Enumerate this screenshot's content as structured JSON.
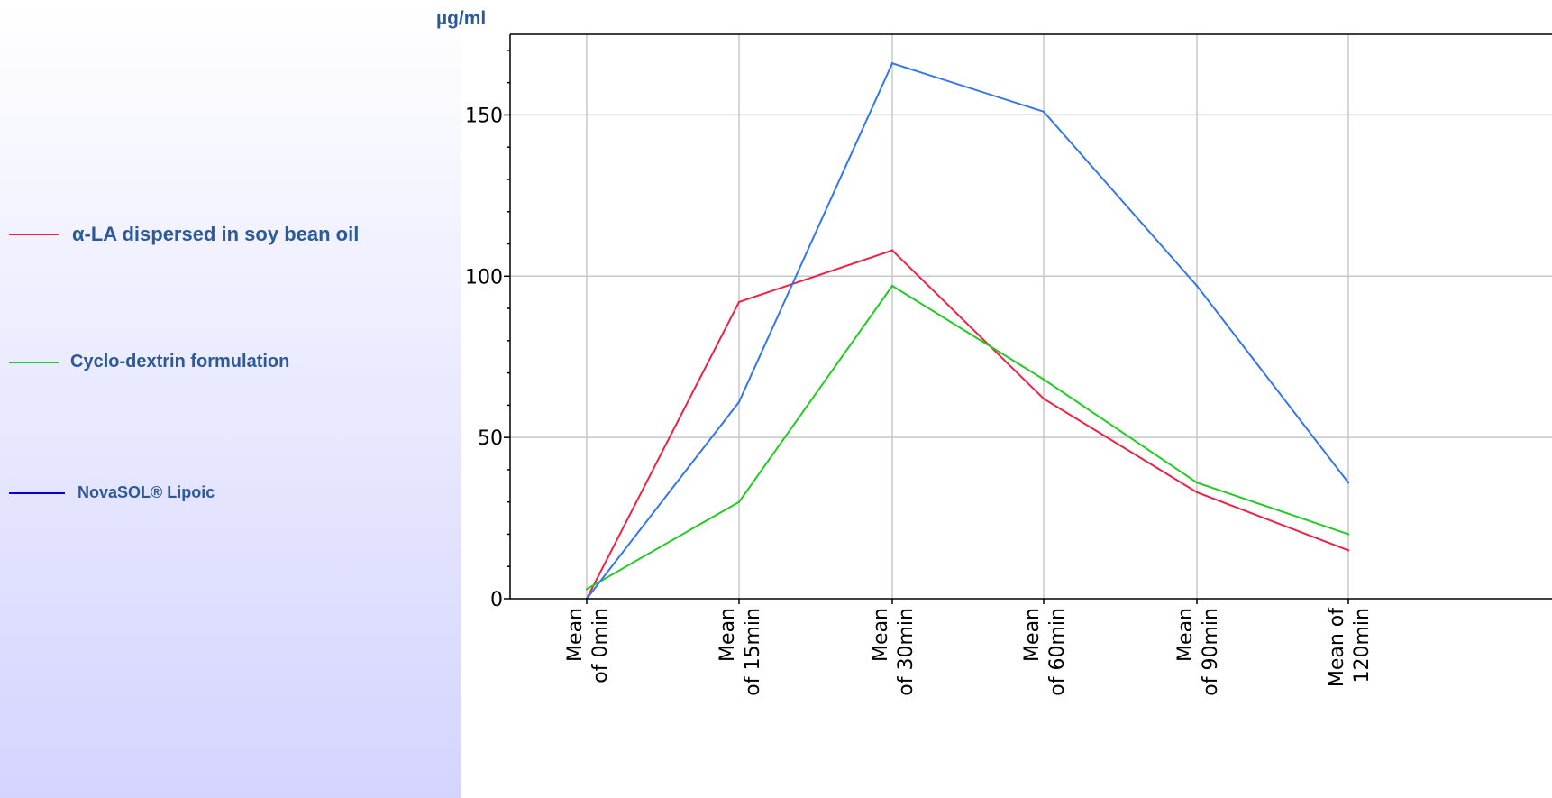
{
  "chart_data": {
    "type": "line",
    "ylabel": "µg/ml",
    "ylim": [
      0,
      175
    ],
    "yticks": [
      0,
      50,
      100,
      150
    ],
    "grid": true,
    "legend_position": "left",
    "categories": [
      [
        "Mean",
        "of 0min"
      ],
      [
        "Mean",
        "of 15min"
      ],
      [
        "Mean",
        "of 30min"
      ],
      [
        "Mean",
        "of 60min"
      ],
      [
        "Mean",
        "of 90min"
      ],
      [
        "Mean of",
        "120min"
      ]
    ],
    "series": [
      {
        "name": "α-LA dispersed in soy bean oil",
        "color": "#ee2244",
        "values": [
          0,
          92,
          108,
          62,
          33,
          15
        ]
      },
      {
        "name": "Cyclo-dextrin formulation",
        "color": "#22cc22",
        "values": [
          3,
          30,
          97,
          68,
          36,
          20
        ]
      },
      {
        "name": "NovaSOL® Lipoic",
        "color": "#3377ee",
        "legend_color": "#0000dd",
        "values": [
          0,
          61,
          166,
          151,
          97,
          36
        ]
      }
    ]
  }
}
